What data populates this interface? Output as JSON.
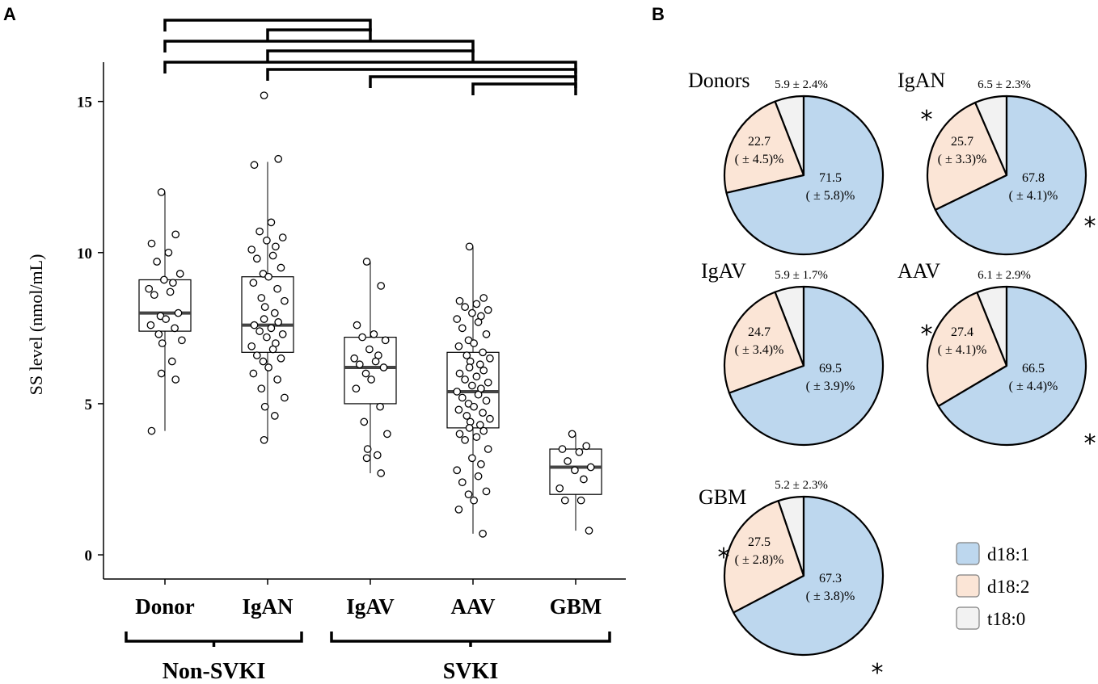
{
  "panels": {
    "a_label": "A",
    "b_label": "B"
  },
  "chart_data": [
    {
      "type": "box",
      "title": "",
      "xlabel": "",
      "ylabel": "SS level (nmol/mL)",
      "ylim": [
        -0.8,
        16.3
      ],
      "yticks": [
        0,
        5,
        10,
        15
      ],
      "ytick_labels": [
        "0",
        "5",
        "10",
        "15"
      ],
      "categories": [
        "Donor",
        "IgAN",
        "IgAV",
        "AAV",
        "GBM"
      ],
      "groups": [
        {
          "label": "Non-SVKI",
          "members": [
            "Donor",
            "IgAN"
          ]
        },
        {
          "label": "SVKI",
          "members": [
            "IgAV",
            "AAV",
            "GBM"
          ]
        }
      ],
      "boxes": [
        {
          "name": "Donor",
          "whisker_low": 4.1,
          "q1": 7.4,
          "median": 8.0,
          "q3": 9.1,
          "whisker_high": 12.0
        },
        {
          "name": "IgAN",
          "whisker_low": 3.8,
          "q1": 6.7,
          "median": 7.6,
          "q3": 9.2,
          "whisker_high": 13.0
        },
        {
          "name": "IgAV",
          "whisker_low": 2.7,
          "q1": 5.0,
          "median": 6.2,
          "q3": 7.2,
          "whisker_high": 9.7
        },
        {
          "name": "AAV",
          "whisker_low": 0.7,
          "q1": 4.2,
          "median": 5.4,
          "q3": 6.7,
          "whisker_high": 10.2
        },
        {
          "name": "GBM",
          "whisker_low": 0.8,
          "q1": 2.0,
          "median": 2.9,
          "q3": 3.5,
          "whisker_high": 4.0
        }
      ],
      "points": [
        {
          "name": "Donor",
          "values": [
            12.0,
            10.6,
            10.3,
            10.0,
            9.7,
            9.3,
            9.1,
            9.0,
            8.8,
            8.7,
            8.6,
            8.0,
            7.9,
            7.8,
            7.6,
            7.5,
            7.3,
            7.1,
            7.0,
            6.4,
            6.0,
            5.8,
            4.1
          ]
        },
        {
          "name": "IgAN",
          "values": [
            15.2,
            13.1,
            12.9,
            11.0,
            10.7,
            10.5,
            10.4,
            10.2,
            10.1,
            9.9,
            9.8,
            9.5,
            9.3,
            9.2,
            9.0,
            8.8,
            8.5,
            8.4,
            8.2,
            8.0,
            7.8,
            7.7,
            7.6,
            7.5,
            7.4,
            7.3,
            7.2,
            7.0,
            6.9,
            6.8,
            6.6,
            6.5,
            6.4,
            6.2,
            6.0,
            5.8,
            5.5,
            5.2,
            4.9,
            4.6,
            3.8
          ]
        },
        {
          "name": "IgAV",
          "values": [
            9.7,
            8.9,
            7.6,
            7.3,
            7.2,
            7.1,
            6.8,
            6.6,
            6.5,
            6.4,
            6.3,
            6.2,
            6.0,
            5.8,
            5.5,
            4.9,
            4.4,
            4.0,
            3.5,
            3.3,
            3.2,
            2.7
          ]
        },
        {
          "name": "AAV",
          "values": [
            10.2,
            8.5,
            8.4,
            8.3,
            8.2,
            8.1,
            8.0,
            7.9,
            7.8,
            7.7,
            7.5,
            7.3,
            7.1,
            7.0,
            6.9,
            6.7,
            6.6,
            6.5,
            6.4,
            6.3,
            6.2,
            6.1,
            6.0,
            5.9,
            5.8,
            5.7,
            5.6,
            5.5,
            5.4,
            5.3,
            5.2,
            5.1,
            5.0,
            4.9,
            4.8,
            4.7,
            4.6,
            4.5,
            4.4,
            4.3,
            4.2,
            4.1,
            4.0,
            3.9,
            3.8,
            3.5,
            3.2,
            3.0,
            2.8,
            2.6,
            2.4,
            2.1,
            2.0,
            1.8,
            1.5,
            0.7
          ]
        },
        {
          "name": "GBM",
          "values": [
            4.0,
            3.6,
            3.5,
            3.4,
            3.1,
            2.9,
            2.8,
            2.5,
            2.2,
            1.8,
            1.8,
            0.8
          ]
        }
      ],
      "significance_brackets": [
        {
          "from": "Donor",
          "to": "IgAV"
        },
        {
          "from": "IgAN",
          "to": "IgAV"
        },
        {
          "from": "Donor",
          "to": "AAV"
        },
        {
          "from": "IgAN",
          "to": "AAV"
        },
        {
          "from": "Donor",
          "to": "GBM"
        },
        {
          "from": "IgAN",
          "to": "GBM"
        },
        {
          "from": "IgAV",
          "to": "GBM"
        },
        {
          "from": "AAV",
          "to": "GBM"
        }
      ]
    },
    {
      "type": "pie",
      "title": "",
      "series_names": [
        "d18:1",
        "d18:2",
        "t18:0"
      ],
      "colors": {
        "d18:1": "#bdd7ee",
        "d18:2": "#fbe5d6",
        "t18:0": "#f2f2f2"
      },
      "legend": {
        "placement": "bottom-right",
        "entries": [
          "d18:1",
          "d18:2",
          "t18:0"
        ]
      },
      "pies": [
        {
          "name": "Donors",
          "values": [
            71.5,
            22.7,
            5.9
          ],
          "labels": {
            "d18:1": [
              "71.5",
              "( ± 5.8)%"
            ],
            "d18:2": [
              "22.7",
              "( ± 4.5)%"
            ],
            "t18:0": "5.9 ± 2.4%"
          },
          "stars": []
        },
        {
          "name": "IgAN",
          "values": [
            67.8,
            25.7,
            6.5
          ],
          "labels": {
            "d18:1": [
              "67.8",
              "( ± 4.1)%"
            ],
            "d18:2": [
              "25.7",
              "( ± 3.3)%"
            ],
            "t18:0": "6.5 ± 2.3%"
          },
          "stars": [
            "d18:1",
            "d18:2"
          ]
        },
        {
          "name": "IgAV",
          "values": [
            69.5,
            24.7,
            5.9
          ],
          "labels": {
            "d18:1": [
              "69.5",
              "( ± 3.9)%"
            ],
            "d18:2": [
              "24.7",
              "( ± 3.4)%"
            ],
            "t18:0": "5.9 ± 1.7%"
          },
          "stars": []
        },
        {
          "name": "AAV",
          "values": [
            66.5,
            27.4,
            6.1
          ],
          "labels": {
            "d18:1": [
              "66.5",
              "( ± 4.4)%"
            ],
            "d18:2": [
              "27.4",
              "( ± 4.1)%"
            ],
            "t18:0": "6.1 ± 2.9%"
          },
          "stars": [
            "d18:1",
            "d18:2"
          ]
        },
        {
          "name": "GBM",
          "values": [
            67.3,
            27.5,
            5.2
          ],
          "labels": {
            "d18:1": [
              "67.3",
              "( ± 3.8)%"
            ],
            "d18:2": [
              "27.5",
              "( ± 2.8)%"
            ],
            "t18:0": "5.2 ± 2.3%"
          },
          "stars": [
            "d18:1",
            "d18:2"
          ]
        }
      ],
      "star_symbol": "*"
    }
  ]
}
